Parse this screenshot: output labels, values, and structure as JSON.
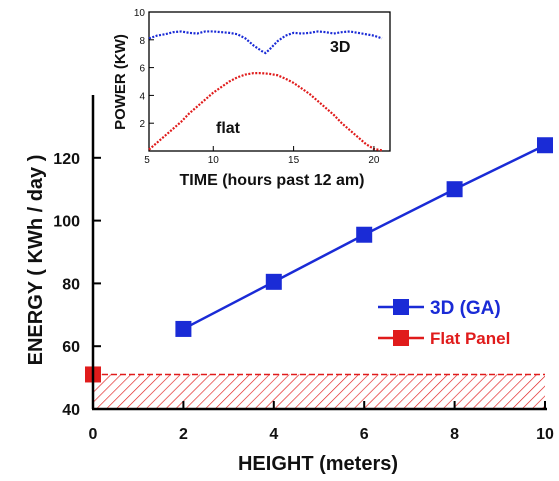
{
  "chart_data": [
    {
      "type": "line",
      "xlabel": "HEIGHT (meters)",
      "ylabel": "ENERGY ( KWh / day )",
      "xlim": [
        0,
        10
      ],
      "ylim": [
        40,
        140
      ],
      "xticks": [
        0,
        2,
        4,
        6,
        8,
        10
      ],
      "xtick_labels": [
        "0",
        "2",
        "4",
        "6",
        "8",
        "10"
      ],
      "yticks": [
        40,
        60,
        80,
        100,
        120
      ],
      "ytick_labels": [
        "40",
        "60",
        "80",
        "100",
        "120"
      ],
      "grid": false,
      "legend_position": "right",
      "series": [
        {
          "name": "3D (GA)",
          "color": "#1a2bd6",
          "marker": "square",
          "x": [
            2,
            4,
            6,
            8,
            10
          ],
          "y": [
            65.5,
            80.5,
            95.5,
            110,
            124
          ]
        },
        {
          "name": "Flat Panel",
          "color": "#e01b1b",
          "marker": "square",
          "x": [
            0
          ],
          "y": [
            51
          ]
        }
      ],
      "annotations": [
        {
          "type": "hatched-band",
          "color": "#e01b1b",
          "ymin": 40,
          "ymax": 51,
          "xmin": 0,
          "xmax": 10
        }
      ]
    },
    {
      "type": "line",
      "xlabel": "TIME (hours past 12 am)",
      "ylabel": "POWER (KW)",
      "xlim": [
        6,
        21
      ],
      "ylim": [
        0,
        10
      ],
      "xticks": [
        5,
        10,
        15,
        20
      ],
      "xtick_labels": [
        "5",
        "10",
        "15",
        "20"
      ],
      "yticks": [
        2,
        4,
        6,
        8,
        10
      ],
      "ytick_labels": [
        "2",
        "4",
        "6",
        "8",
        "10"
      ],
      "grid": false,
      "series_labels": [
        "3D",
        "flat"
      ],
      "series": [
        {
          "color": "#1a2bd6",
          "x": [
            6,
            6.5,
            7,
            7.5,
            8,
            8.5,
            9,
            9.5,
            10,
            10.5,
            11,
            11.5,
            12,
            12.5,
            13,
            13.25,
            13.5,
            14,
            14.5,
            15,
            15.5,
            16,
            16.5,
            17,
            17.5,
            18,
            18.5,
            19,
            19.5,
            20,
            20.5
          ],
          "y": [
            8.1,
            8.3,
            8.4,
            8.55,
            8.6,
            8.5,
            8.45,
            8.6,
            8.6,
            8.55,
            8.5,
            8.4,
            8.1,
            7.6,
            7.2,
            7.05,
            7.3,
            7.9,
            8.3,
            8.5,
            8.45,
            8.5,
            8.6,
            8.55,
            8.45,
            8.55,
            8.6,
            8.5,
            8.4,
            8.3,
            8.1
          ]
        },
        {
          "color": "#e01b1b",
          "x": [
            6,
            6.5,
            7,
            7.5,
            8,
            8.5,
            9,
            9.5,
            10,
            10.5,
            11,
            11.5,
            12,
            12.5,
            13,
            13.5,
            14,
            14.5,
            15,
            15.5,
            16,
            16.5,
            17,
            17.5,
            18,
            18.5,
            19,
            19.5,
            20,
            20.5
          ],
          "y": [
            0.1,
            0.6,
            1.1,
            1.6,
            2.1,
            2.7,
            3.2,
            3.7,
            4.2,
            4.6,
            5.0,
            5.3,
            5.5,
            5.6,
            5.6,
            5.55,
            5.45,
            5.2,
            4.9,
            4.5,
            4.1,
            3.6,
            3.1,
            2.6,
            2.0,
            1.5,
            1.0,
            0.5,
            0.15,
            0.05
          ]
        }
      ]
    }
  ]
}
